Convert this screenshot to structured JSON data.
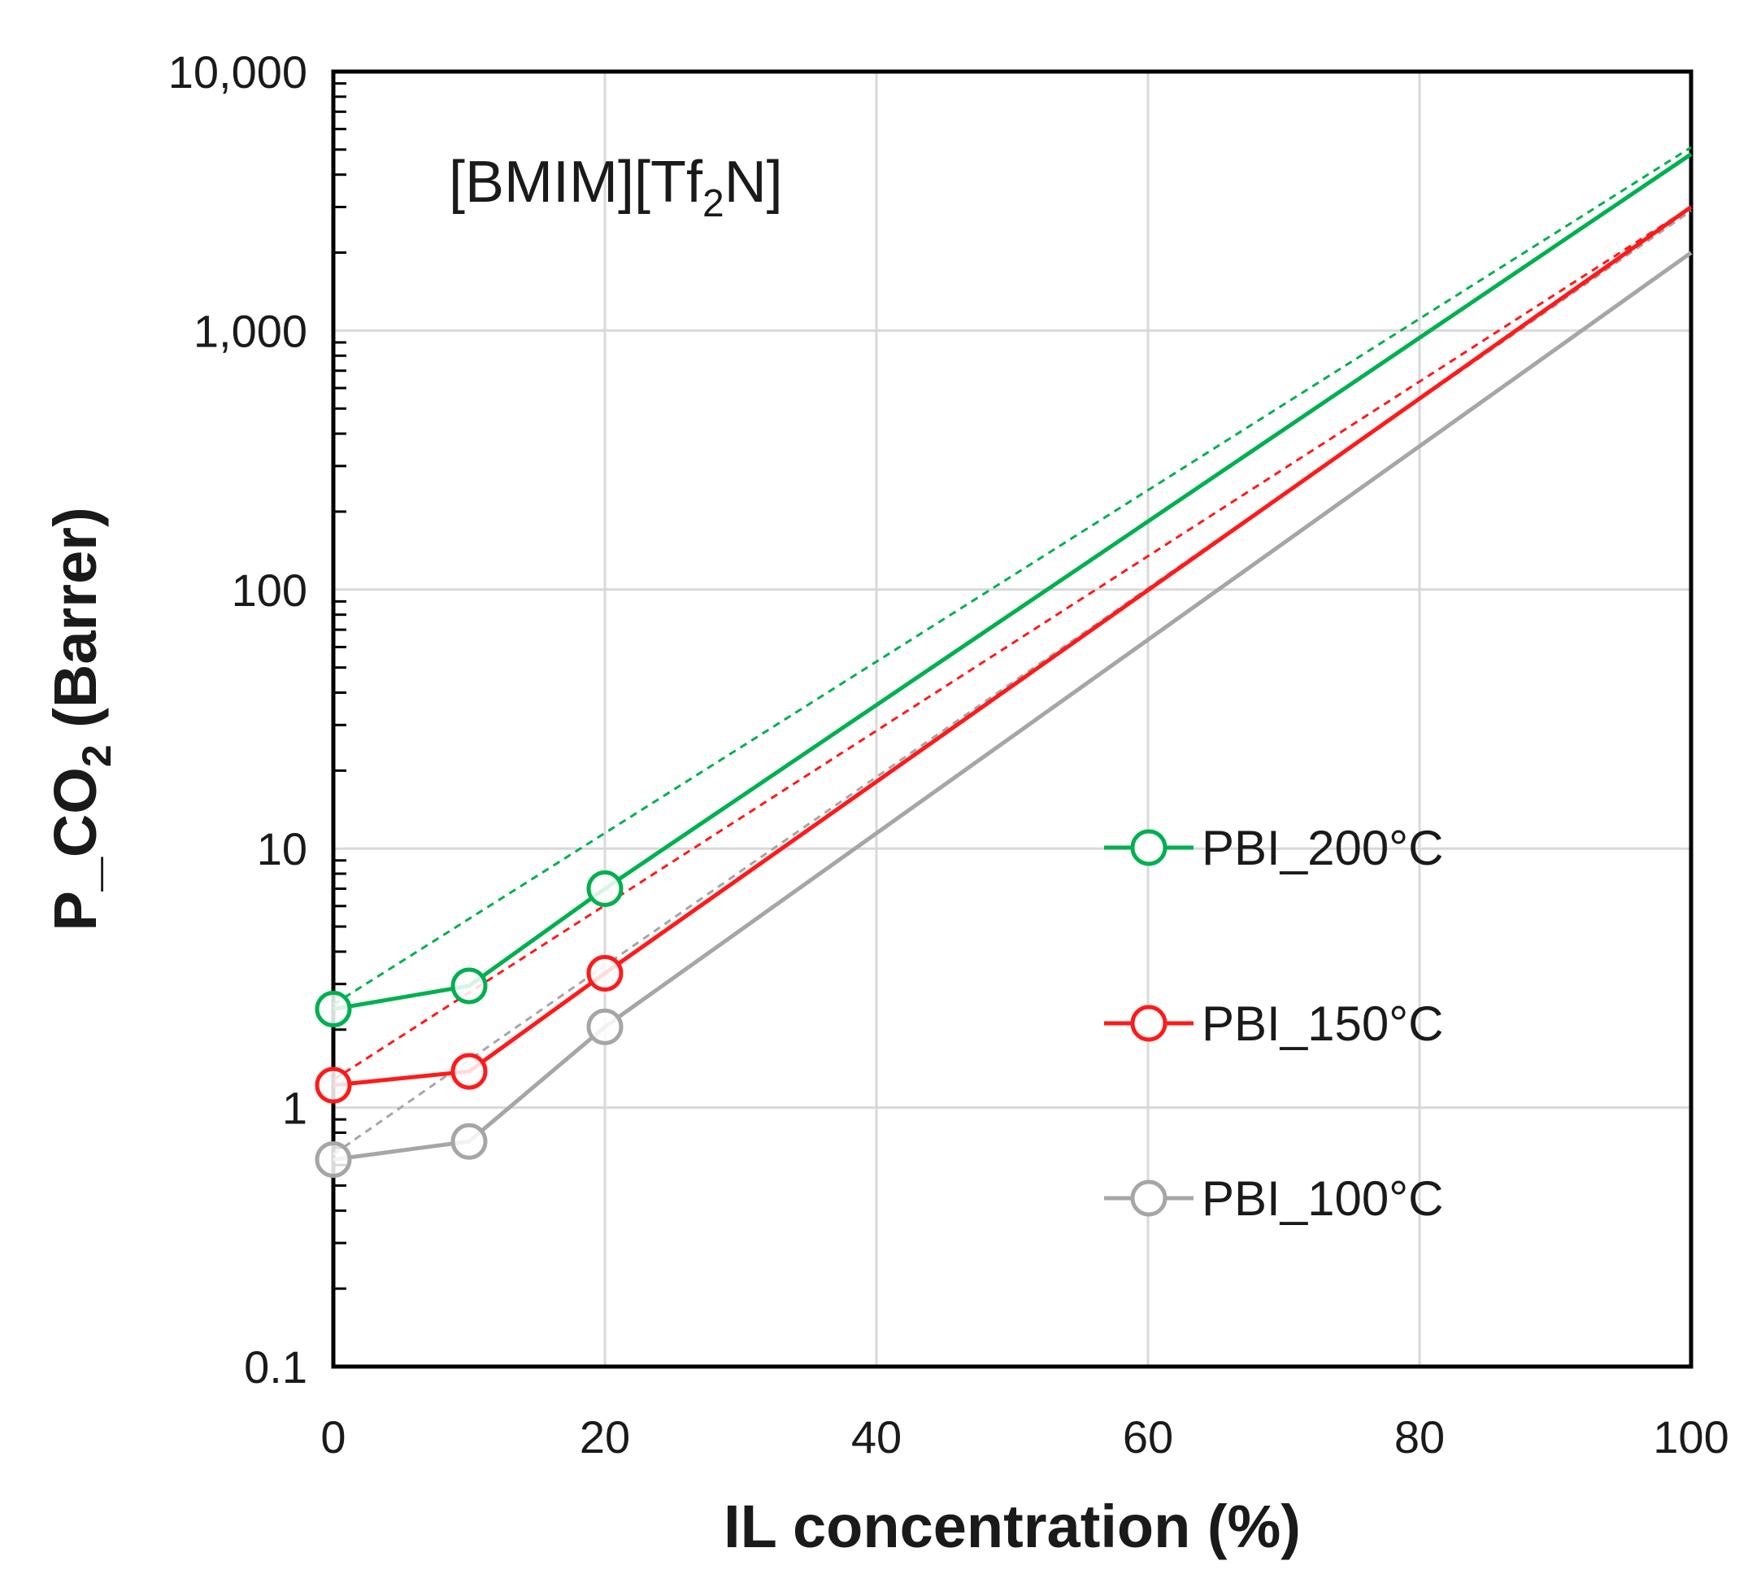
{
  "chart_data": {
    "type": "line",
    "scale_y": "log",
    "annotation": {
      "main": "[BMIM][Tf",
      "sub": "2",
      "tail": "N]"
    },
    "xlabel": "IL concentration (%)",
    "ylabel": {
      "main": "P_CO",
      "sub": "2",
      "tail": " (Barrer)"
    },
    "xlim": [
      0,
      100
    ],
    "ylim": [
      0.1,
      10000
    ],
    "x_ticks": [
      0,
      20,
      40,
      60,
      80,
      100
    ],
    "x_tick_labels": [
      "0",
      "20",
      "40",
      "60",
      "80",
      "100"
    ],
    "y_ticks": [
      0.1,
      1,
      10,
      100,
      1000,
      10000
    ],
    "y_tick_labels": [
      "0.1",
      "1",
      "10",
      "100",
      "1,000",
      "10,000"
    ],
    "grid": true,
    "legend_position": "right-middle",
    "series": [
      {
        "name": "PBI_200°C",
        "color": "#00b050",
        "x": [
          0,
          10,
          20,
          100
        ],
        "y": [
          2.4,
          2.95,
          7.0,
          4800
        ],
        "marker_x": [
          0,
          10,
          20
        ],
        "trend": {
          "x": [
            0,
            100
          ],
          "y": [
            2.5,
            5100
          ]
        }
      },
      {
        "name": "PBI_150°C",
        "color": "#ff1a1a",
        "x": [
          0,
          10,
          20,
          100
        ],
        "y": [
          1.22,
          1.38,
          3.3,
          3000
        ],
        "marker_x": [
          0,
          10,
          20
        ],
        "trend": {
          "x": [
            0,
            100
          ],
          "y": [
            1.28,
            3000
          ]
        }
      },
      {
        "name": "PBI_100°C",
        "color": "#a6a6a6",
        "x": [
          0,
          10,
          20,
          100
        ],
        "y": [
          0.63,
          0.74,
          2.05,
          2000
        ],
        "marker_x": [
          0,
          10,
          20
        ],
        "trend": {
          "x": [
            0,
            100
          ],
          "y": [
            0.66,
            2900
          ]
        }
      }
    ]
  }
}
